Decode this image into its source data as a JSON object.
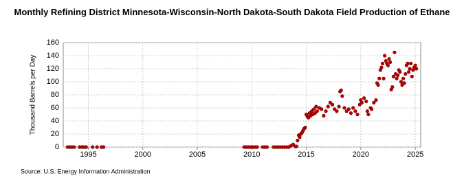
{
  "chart_data": {
    "type": "scatter",
    "title": "Monthly Refining District Minnesota-Wisconsin-North Dakota-South Dakota Field Production of Ethane",
    "ylabel": "Thousand Barrels per Day",
    "source": "Source: U.S. Energy Information Administration",
    "color": "#c00000",
    "grid": true,
    "xlim": [
      1992.7,
      2025.5
    ],
    "xticks": [
      1995,
      2000,
      2005,
      2010,
      2015,
      2020,
      2025
    ],
    "ylim": [
      0,
      160
    ],
    "yticks": [
      0,
      20,
      40,
      60,
      80,
      100,
      120,
      140,
      160
    ],
    "x": [
      1993.1,
      1993.3,
      1993.5,
      1993.7,
      1994.2,
      1994.4,
      1994.6,
      1994.8,
      1995.4,
      1995.8,
      1996.2,
      1996.4,
      2009.3,
      2009.5,
      2009.7,
      2009.9,
      2010.1,
      2010.3,
      2010.5,
      2011.0,
      2011.2,
      2011.4,
      2012.0,
      2012.2,
      2012.4,
      2012.6,
      2012.8,
      2013.0,
      2013.2,
      2013.4,
      2013.6,
      2013.8,
      2014.0,
      2014.1,
      2014.2,
      2014.3,
      2014.4,
      2014.5,
      2014.6,
      2014.7,
      2014.8,
      2014.9,
      2015.0,
      2015.1,
      2015.2,
      2015.3,
      2015.4,
      2015.5,
      2015.6,
      2015.7,
      2015.8,
      2015.9,
      2016.0,
      2016.2,
      2016.4,
      2016.6,
      2016.8,
      2017.0,
      2017.2,
      2017.4,
      2017.6,
      2017.8,
      2018.0,
      2018.1,
      2018.2,
      2018.3,
      2018.5,
      2018.7,
      2018.9,
      2019.1,
      2019.3,
      2019.5,
      2019.7,
      2019.9,
      2020.0,
      2020.1,
      2020.3,
      2020.5,
      2020.6,
      2020.7,
      2020.9,
      2021.0,
      2021.2,
      2021.4,
      2021.5,
      2021.6,
      2021.7,
      2021.8,
      2021.9,
      2022.0,
      2022.1,
      2022.2,
      2022.3,
      2022.4,
      2022.5,
      2022.6,
      2022.7,
      2022.8,
      2022.9,
      2023.0,
      2023.1,
      2023.2,
      2023.3,
      2023.4,
      2023.5,
      2023.6,
      2023.7,
      2023.8,
      2023.9,
      2024.0,
      2024.1,
      2024.2,
      2024.3,
      2024.4,
      2024.5,
      2024.6,
      2024.7,
      2024.8,
      2024.9,
      2025.0,
      2025.1
    ],
    "values": [
      0,
      0,
      0,
      0,
      0,
      0,
      0,
      0,
      0,
      0,
      0,
      0,
      0,
      0,
      0,
      0,
      0,
      0,
      0,
      0,
      0,
      0,
      0,
      0,
      0,
      0,
      0,
      0,
      0,
      0,
      2,
      4,
      1,
      1,
      10,
      18,
      15,
      20,
      22,
      25,
      28,
      30,
      50,
      47,
      45,
      52,
      48,
      55,
      50,
      58,
      52,
      62,
      55,
      60,
      58,
      48,
      55,
      62,
      68,
      65,
      58,
      55,
      62,
      85,
      87,
      78,
      60,
      55,
      58,
      52,
      60,
      55,
      50,
      65,
      72,
      68,
      75,
      70,
      55,
      50,
      60,
      58,
      68,
      72,
      98,
      95,
      105,
      118,
      122,
      128,
      105,
      140,
      132,
      128,
      125,
      135,
      130,
      88,
      92,
      108,
      145,
      112,
      105,
      110,
      118,
      115,
      100,
      95,
      105,
      98,
      112,
      125,
      128,
      115,
      120,
      128,
      108,
      118,
      122,
      125,
      120
    ]
  }
}
